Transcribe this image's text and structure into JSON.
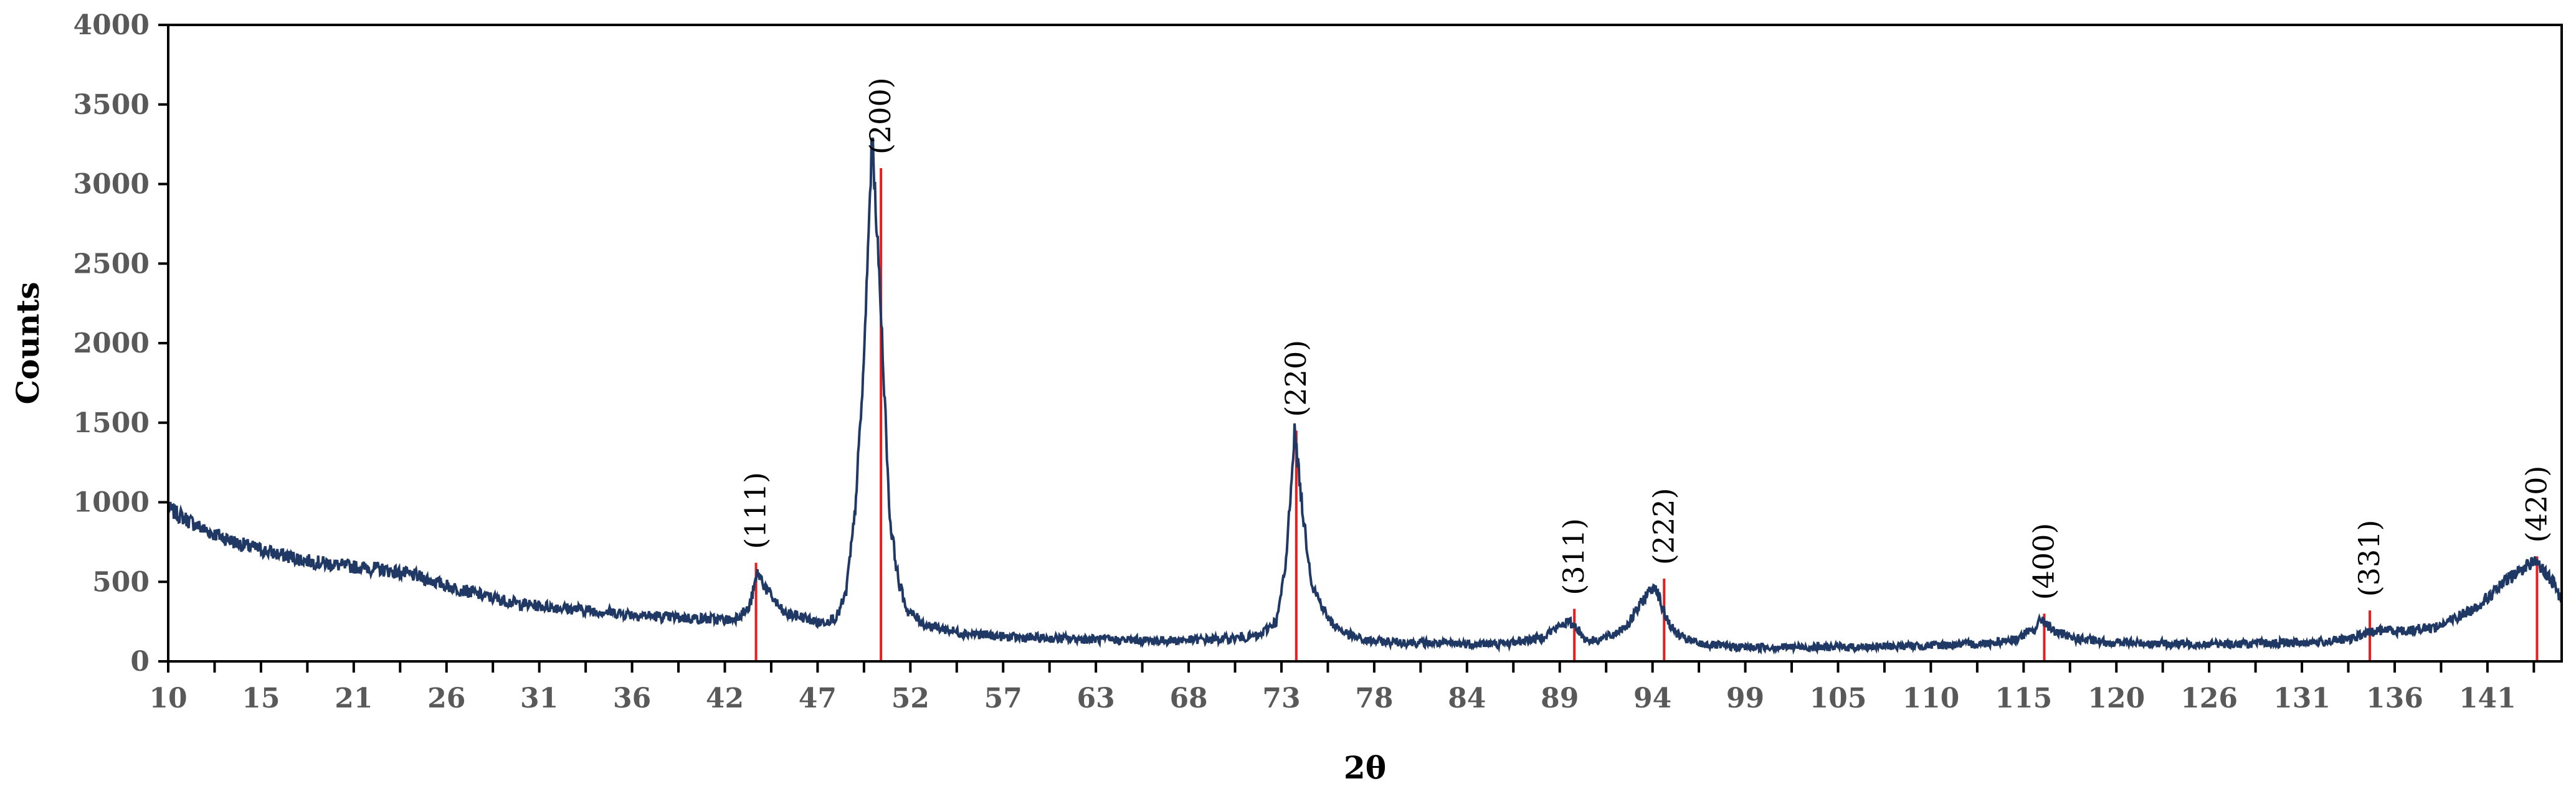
{
  "chart_data": {
    "type": "line",
    "title": "",
    "xlabel": "2θ",
    "ylabel": "Counts",
    "xlim": [
      10,
      146
    ],
    "ylim": [
      0,
      4000
    ],
    "y_ticks": [
      0,
      500,
      1000,
      1500,
      2000,
      2500,
      3000,
      3500,
      4000
    ],
    "x_tick_labels": [
      "10",
      "15",
      "21",
      "26",
      "31",
      "36",
      "42",
      "47",
      "52",
      "57",
      "63",
      "68",
      "73",
      "78",
      "84",
      "89",
      "94",
      "99",
      "105",
      "110",
      "115",
      "120",
      "126",
      "131",
      "136",
      "141"
    ],
    "grid": false,
    "legend": "none",
    "colors": {
      "pattern": "#1f3864",
      "reference": "#e81d1d",
      "axis": "#000000"
    },
    "series": [
      {
        "x": [
          10,
          12,
          14,
          16,
          18,
          20,
          22,
          24,
          26,
          28,
          30,
          32,
          34,
          36,
          38,
          40,
          42,
          43,
          43.5,
          44,
          45,
          46,
          47,
          48,
          48.5,
          49,
          49.5,
          50,
          50.5,
          51,
          51.5,
          52,
          53,
          55,
          58,
          62,
          66,
          70,
          72,
          73,
          73.5,
          74,
          74.5,
          75,
          76,
          77,
          78,
          80,
          83,
          86,
          88,
          89.5,
          90,
          90.5,
          91,
          92,
          93,
          94,
          94.5,
          95,
          95.5,
          96,
          97,
          99,
          102,
          106,
          110,
          113,
          115,
          116,
          116.5,
          117,
          118,
          120,
          124,
          128,
          132,
          134,
          135,
          136,
          137,
          139,
          141,
          142,
          143,
          144,
          144.5,
          145,
          145.5,
          146
        ],
        "y": [
          960,
          830,
          740,
          680,
          630,
          600,
          580,
          540,
          470,
          410,
          360,
          340,
          320,
          300,
          280,
          270,
          260,
          330,
          560,
          450,
          300,
          280,
          240,
          280,
          420,
          900,
          1800,
          3300,
          2200,
          900,
          500,
          320,
          230,
          180,
          150,
          140,
          130,
          140,
          160,
          260,
          600,
          1450,
          900,
          480,
          250,
          170,
          130,
          120,
          110,
          110,
          150,
          250,
          220,
          140,
          130,
          160,
          240,
          420,
          480,
          300,
          200,
          150,
          110,
          90,
          90,
          90,
          100,
          110,
          140,
          200,
          270,
          200,
          150,
          120,
          110,
          110,
          120,
          140,
          180,
          200,
          190,
          220,
          330,
          420,
          520,
          600,
          640,
          560,
          500,
          380
        ]
      }
    ],
    "reference_peaks": [
      {
        "label": "(111)",
        "x": 43.4,
        "y": 620
      },
      {
        "label": "(200)",
        "x": 50.5,
        "y": 3100
      },
      {
        "label": "(220)",
        "x": 74.1,
        "y": 1450
      },
      {
        "label": "(311)",
        "x": 89.9,
        "y": 330
      },
      {
        "label": "(222)",
        "x": 95.0,
        "y": 520
      },
      {
        "label": "(400)",
        "x": 116.6,
        "y": 300
      },
      {
        "label": "(331)",
        "x": 135.1,
        "y": 320
      },
      {
        "label": "(420)",
        "x": 144.6,
        "y": 660
      }
    ]
  }
}
